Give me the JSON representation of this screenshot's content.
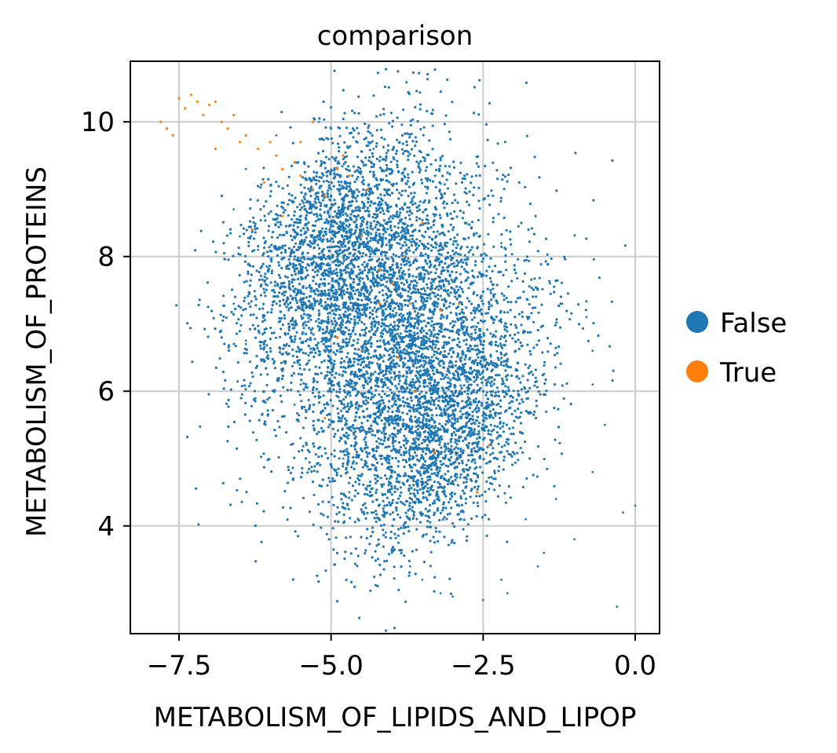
{
  "chart_data": {
    "type": "scatter",
    "title": "comparison",
    "xlabel": "METABOLISM_OF_LIPIDS_AND_LIPOP",
    "ylabel": "METABOLISM_OF_PROTEINS",
    "xlim": [
      -8.3,
      0.4
    ],
    "ylim": [
      2.4,
      10.9
    ],
    "xticks": [
      -7.5,
      -5.0,
      -2.5,
      0.0
    ],
    "xtick_labels": [
      "−7.5",
      "−5.0",
      "−2.5",
      "0.0"
    ],
    "yticks": [
      4,
      6,
      8,
      10
    ],
    "ytick_labels": [
      "4",
      "6",
      "8",
      "10"
    ],
    "grid": true,
    "legend_position": "right",
    "series": [
      {
        "name": "False",
        "color": "#1f77b4",
        "cluster": {
          "description_of_shape": "dense elongated cloud",
          "main_axis_from": [
            -5.3,
            8.9
          ],
          "main_axis_to": [
            -2.7,
            4.8
          ],
          "core_width": 1.1
        },
        "values": [
          [
            -6.8,
            8.9
          ],
          [
            -6.6,
            8.7
          ],
          [
            -6.4,
            9.3
          ],
          [
            -6.2,
            8.1
          ],
          [
            -6.5,
            8.3
          ],
          [
            -6.6,
            7.3
          ],
          [
            -6.4,
            6.7
          ],
          [
            -5.8,
            7.6
          ],
          [
            -5.7,
            7.2
          ],
          [
            -5.5,
            6.1
          ],
          [
            -5.2,
            5.9
          ],
          [
            -4.8,
            5.0
          ],
          [
            -4.6,
            5.4
          ],
          [
            -4.2,
            5.7
          ],
          [
            -4.7,
            4.5
          ],
          [
            -4.3,
            4.2
          ],
          [
            -4.1,
            3.9
          ],
          [
            -4.0,
            3.6
          ],
          [
            -3.7,
            3.4
          ],
          [
            -3.5,
            3.2
          ],
          [
            -3.2,
            3.0
          ],
          [
            -2.5,
            2.9
          ],
          [
            -2.2,
            3.2
          ],
          [
            -1.6,
            3.4
          ],
          [
            -1.5,
            3.6
          ],
          [
            -1.0,
            3.8
          ],
          [
            -1.3,
            4.4
          ],
          [
            -0.7,
            4.8
          ],
          [
            -0.5,
            5.5
          ],
          [
            -0.7,
            6.1
          ],
          [
            -0.7,
            6.6
          ],
          [
            -0.8,
            7.1
          ],
          [
            -1.2,
            7.3
          ],
          [
            -1.4,
            7.6
          ],
          [
            -2.2,
            8.2
          ],
          [
            -3.3,
            8.6
          ],
          [
            -3.8,
            9.2
          ],
          [
            -4.3,
            9.6
          ],
          [
            -5.0,
            9.9
          ],
          [
            -5.2,
            10.0
          ],
          [
            -5.9,
            9.8
          ],
          [
            0.0,
            4.3
          ],
          [
            -0.3,
            2.8
          ],
          [
            -0.2,
            4.2
          ],
          [
            -4.9,
            3.6
          ],
          [
            -2.1,
            3.0
          ],
          [
            -3.0,
            2.95
          ],
          [
            -6.4,
            6.75
          ],
          [
            -5.6,
            5.8
          ],
          [
            -1.8,
            4.1
          ]
        ]
      },
      {
        "name": "True",
        "color": "#ff7f0e",
        "values": [
          [
            -7.8,
            10.0
          ],
          [
            -7.7,
            9.9
          ],
          [
            -7.5,
            10.35
          ],
          [
            -7.4,
            10.2
          ],
          [
            -7.3,
            10.4
          ],
          [
            -7.2,
            10.3
          ],
          [
            -7.1,
            10.1
          ],
          [
            -7.0,
            10.25
          ],
          [
            -6.9,
            10.3
          ],
          [
            -6.8,
            10.0
          ],
          [
            -6.7,
            9.9
          ],
          [
            -6.6,
            10.1
          ],
          [
            -6.5,
            9.7
          ],
          [
            -6.4,
            9.8
          ],
          [
            -6.2,
            9.6
          ],
          [
            -6.0,
            9.7
          ],
          [
            -5.9,
            9.5
          ],
          [
            -5.8,
            9.3
          ],
          [
            -5.6,
            9.4
          ],
          [
            -5.5,
            9.2
          ],
          [
            -5.3,
            9.0
          ],
          [
            -5.1,
            8.9
          ],
          [
            -4.9,
            9.3
          ],
          [
            -4.7,
            9.2
          ],
          [
            -4.5,
            8.3
          ],
          [
            -4.2,
            7.8
          ],
          [
            -4.0,
            7.6
          ],
          [
            -3.8,
            8.0
          ],
          [
            -3.7,
            7.3
          ],
          [
            -3.2,
            7.2
          ],
          [
            -4.5,
            6.6
          ],
          [
            -4.2,
            7.3
          ],
          [
            -5.1,
            5.6
          ],
          [
            -3.6,
            6.0
          ],
          [
            -3.3,
            5.1
          ],
          [
            -2.6,
            4.5
          ],
          [
            -2.4,
            5.2
          ],
          [
            -5.8,
            8.6
          ],
          [
            -6.3,
            8.4
          ],
          [
            -5.5,
            9.7
          ],
          [
            -6.1,
            9.1
          ],
          [
            -4.8,
            9.5
          ],
          [
            -7.6,
            9.8
          ],
          [
            -6.9,
            9.6
          ],
          [
            -5.3,
            10.0
          ],
          [
            -4.4,
            9.0
          ],
          [
            -3.5,
            8.5
          ],
          [
            -2.9,
            7.3
          ],
          [
            -4.9,
            6.8
          ],
          [
            -3.9,
            6.5
          ]
        ]
      }
    ]
  },
  "legend": {
    "items": [
      {
        "label": "False",
        "color": "#1f77b4"
      },
      {
        "label": "True",
        "color": "#ff7f0e"
      }
    ]
  }
}
